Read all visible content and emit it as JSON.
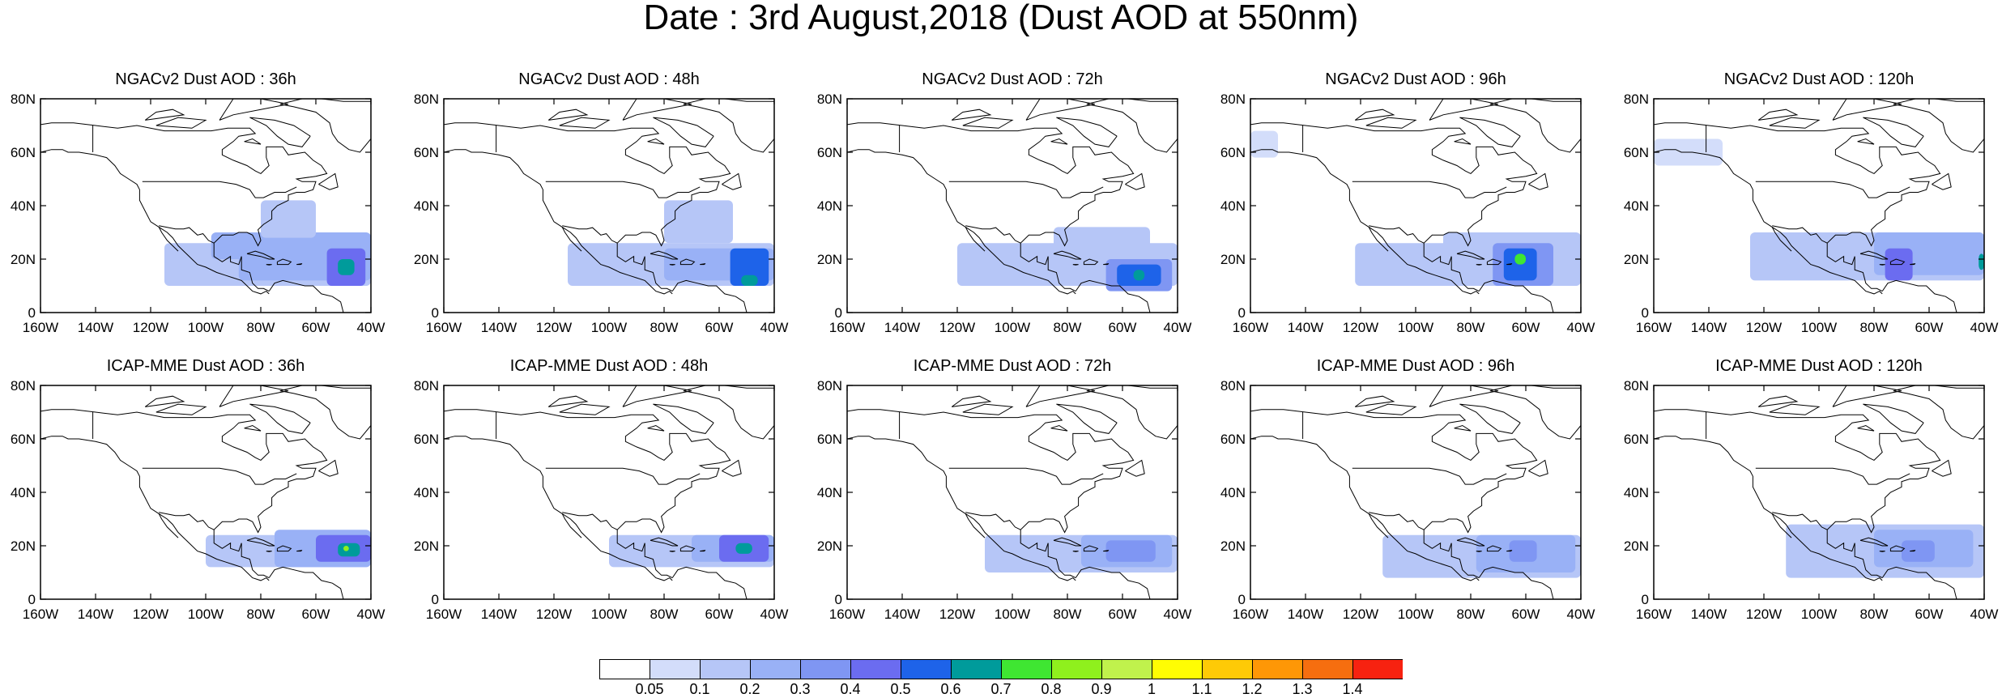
{
  "title": "Date : 3rd August,2018 (Dust AOD at 550nm)",
  "x_ticks": [
    "160W",
    "140W",
    "120W",
    "100W",
    "80W",
    "60W",
    "40W"
  ],
  "y_ticks": [
    "0",
    "20N",
    "40N",
    "60N",
    "80N"
  ],
  "extent": {
    "lon": [
      -160,
      -40
    ],
    "lat": [
      0,
      80
    ]
  },
  "panels": [
    {
      "title": "NGACv2 Dust AOD : 36h",
      "blobs": [
        {
          "lon": [
            -115,
            -40
          ],
          "lat": [
            10,
            26
          ],
          "level": 2
        },
        {
          "lon": [
            -88,
            -40
          ],
          "lat": [
            12,
            30
          ],
          "level": 3
        },
        {
          "lon": [
            -80,
            -60
          ],
          "lat": [
            28,
            42
          ],
          "level": 2
        },
        {
          "lon": [
            -56,
            -42
          ],
          "lat": [
            10,
            24
          ],
          "level": 5
        },
        {
          "lon": [
            -52,
            -46
          ],
          "lat": [
            14,
            20
          ],
          "level": 7
        },
        {
          "lon": [
            -98,
            -85
          ],
          "lat": [
            20,
            30
          ],
          "level": 3
        }
      ]
    },
    {
      "title": "NGACv2 Dust AOD : 48h",
      "blobs": [
        {
          "lon": [
            -115,
            -40
          ],
          "lat": [
            10,
            26
          ],
          "level": 2
        },
        {
          "lon": [
            -80,
            -55
          ],
          "lat": [
            26,
            42
          ],
          "level": 2
        },
        {
          "lon": [
            -80,
            -40
          ],
          "lat": [
            12,
            24
          ],
          "level": 3
        },
        {
          "lon": [
            -56,
            -42
          ],
          "lat": [
            10,
            24
          ],
          "level": 6
        },
        {
          "lon": [
            -52,
            -46
          ],
          "lat": [
            10,
            14
          ],
          "level": 7
        }
      ]
    },
    {
      "title": "NGACv2 Dust AOD : 72h",
      "blobs": [
        {
          "lon": [
            -120,
            -40
          ],
          "lat": [
            10,
            26
          ],
          "level": 2
        },
        {
          "lon": [
            -85,
            -50
          ],
          "lat": [
            18,
            32
          ],
          "level": 2
        },
        {
          "lon": [
            -66,
            -42
          ],
          "lat": [
            8,
            20
          ],
          "level": 4
        },
        {
          "lon": [
            -62,
            -46
          ],
          "lat": [
            10,
            18
          ],
          "level": 6
        },
        {
          "lon": [
            -56,
            -52
          ],
          "lat": [
            12,
            16
          ],
          "level": 7
        }
      ]
    },
    {
      "title": "NGACv2 Dust AOD : 96h",
      "blobs": [
        {
          "lon": [
            -122,
            -40
          ],
          "lat": [
            10,
            26
          ],
          "level": 2
        },
        {
          "lon": [
            -90,
            -40
          ],
          "lat": [
            14,
            30
          ],
          "level": 2
        },
        {
          "lon": [
            -160,
            -150
          ],
          "lat": [
            58,
            68
          ],
          "level": 1
        },
        {
          "lon": [
            -72,
            -50
          ],
          "lat": [
            10,
            26
          ],
          "level": 4
        },
        {
          "lon": [
            -68,
            -56
          ],
          "lat": [
            12,
            24
          ],
          "level": 6
        },
        {
          "lon": [
            -64,
            -60
          ],
          "lat": [
            18,
            22
          ],
          "level": 8
        }
      ]
    },
    {
      "title": "NGACv2 Dust AOD : 120h",
      "blobs": [
        {
          "lon": [
            -125,
            -40
          ],
          "lat": [
            12,
            30
          ],
          "level": 2
        },
        {
          "lon": [
            -160,
            -135
          ],
          "lat": [
            55,
            65
          ],
          "level": 1
        },
        {
          "lon": [
            -80,
            -40
          ],
          "lat": [
            14,
            30
          ],
          "level": 3
        },
        {
          "lon": [
            -76,
            -66
          ],
          "lat": [
            12,
            24
          ],
          "level": 5
        },
        {
          "lon": [
            -42,
            -40
          ],
          "lat": [
            16,
            22
          ],
          "level": 7
        }
      ]
    },
    {
      "title": "ICAP-MME Dust AOD : 36h",
      "blobs": [
        {
          "lon": [
            -100,
            -40
          ],
          "lat": [
            12,
            24
          ],
          "level": 2
        },
        {
          "lon": [
            -75,
            -40
          ],
          "lat": [
            12,
            26
          ],
          "level": 3
        },
        {
          "lon": [
            -60,
            -40
          ],
          "lat": [
            14,
            24
          ],
          "level": 5
        },
        {
          "lon": [
            -52,
            -44
          ],
          "lat": [
            16,
            21
          ],
          "level": 7
        },
        {
          "lon": [
            -50,
            -48
          ],
          "lat": [
            18,
            20
          ],
          "level": 9
        }
      ]
    },
    {
      "title": "ICAP-MME Dust AOD : 48h",
      "blobs": [
        {
          "lon": [
            -100,
            -40
          ],
          "lat": [
            12,
            24
          ],
          "level": 2
        },
        {
          "lon": [
            -70,
            -40
          ],
          "lat": [
            14,
            24
          ],
          "level": 3
        },
        {
          "lon": [
            -60,
            -42
          ],
          "lat": [
            14,
            24
          ],
          "level": 5
        },
        {
          "lon": [
            -54,
            -48
          ],
          "lat": [
            17,
            21
          ],
          "level": 7
        }
      ]
    },
    {
      "title": "ICAP-MME Dust AOD : 72h",
      "blobs": [
        {
          "lon": [
            -110,
            -40
          ],
          "lat": [
            10,
            24
          ],
          "level": 2
        },
        {
          "lon": [
            -75,
            -42
          ],
          "lat": [
            12,
            24
          ],
          "level": 3
        },
        {
          "lon": [
            -66,
            -48
          ],
          "lat": [
            14,
            22
          ],
          "level": 4
        }
      ]
    },
    {
      "title": "ICAP-MME Dust AOD : 96h",
      "blobs": [
        {
          "lon": [
            -112,
            -40
          ],
          "lat": [
            8,
            24
          ],
          "level": 2
        },
        {
          "lon": [
            -78,
            -42
          ],
          "lat": [
            10,
            24
          ],
          "level": 3
        },
        {
          "lon": [
            -66,
            -56
          ],
          "lat": [
            14,
            22
          ],
          "level": 4
        }
      ]
    },
    {
      "title": "ICAP-MME Dust AOD : 120h",
      "blobs": [
        {
          "lon": [
            -112,
            -40
          ],
          "lat": [
            8,
            28
          ],
          "level": 2
        },
        {
          "lon": [
            -80,
            -44
          ],
          "lat": [
            12,
            26
          ],
          "level": 3
        },
        {
          "lon": [
            -70,
            -58
          ],
          "lat": [
            14,
            22
          ],
          "level": 4
        }
      ]
    }
  ],
  "colorbar": {
    "labels": [
      "0.05",
      "0.1",
      "0.2",
      "0.3",
      "0.4",
      "0.5",
      "0.6",
      "0.7",
      "0.8",
      "0.9",
      "1",
      "1.1",
      "1.2",
      "1.3",
      "1.4"
    ],
    "colors": [
      "#ffffff",
      "#d3ddfa",
      "#b6c6f7",
      "#99b1f6",
      "#7f96f3",
      "#6b6cf0",
      "#1e63e9",
      "#009b9b",
      "#3fe632",
      "#8ff01d",
      "#c0f24c",
      "#fffd03",
      "#feca06",
      "#fe9706",
      "#f66e0f",
      "#f72210"
    ]
  }
}
